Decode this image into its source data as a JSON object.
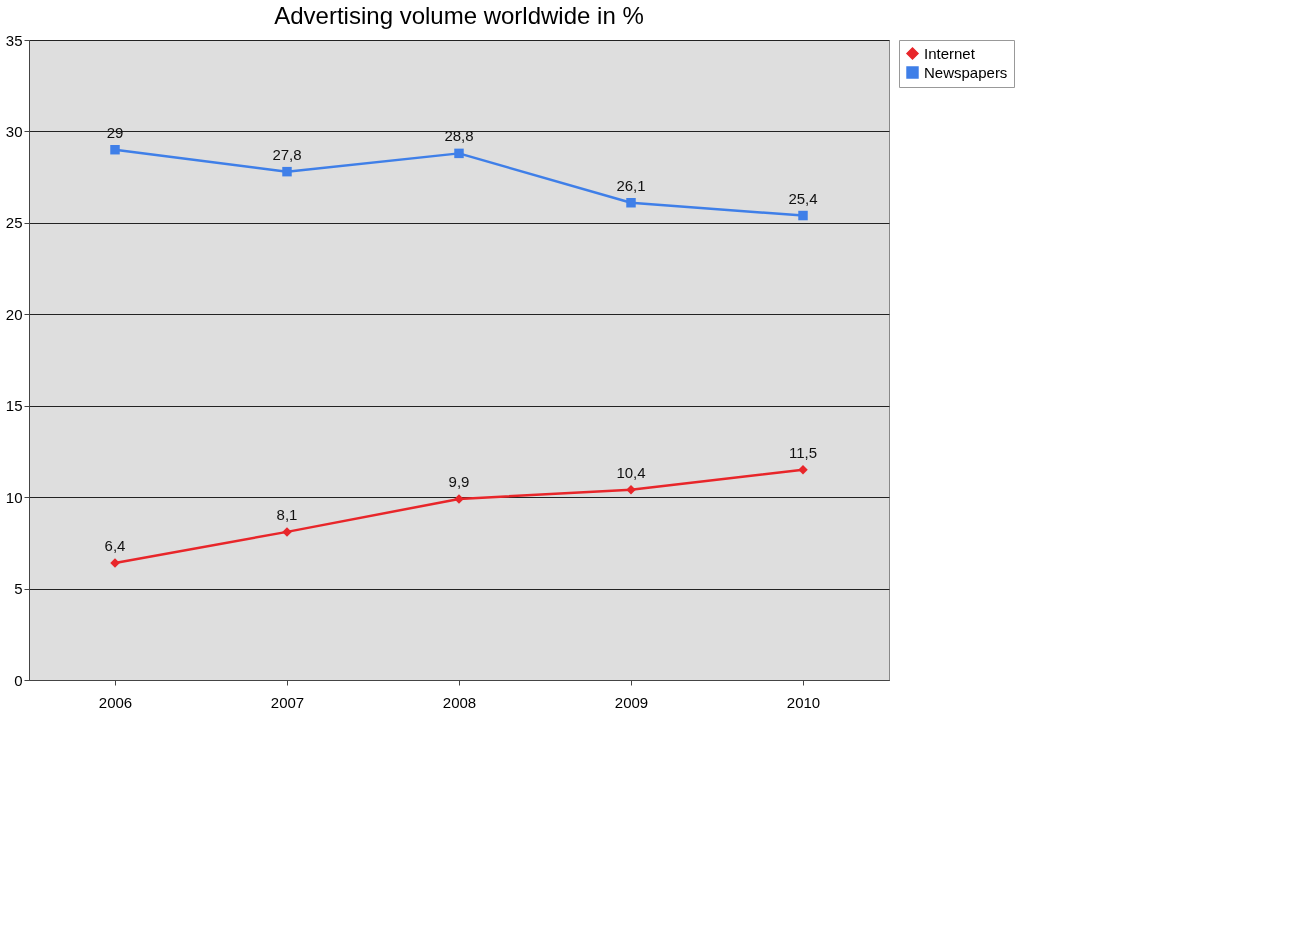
{
  "chart_data": {
    "type": "line",
    "title": "Advertising volume worldwide in %",
    "categories": [
      "2006",
      "2007",
      "2008",
      "2009",
      "2010"
    ],
    "series": [
      {
        "name": "Internet",
        "color": "#e8262a",
        "marker": "diamond",
        "values": [
          6.4,
          8.1,
          9.9,
          10.4,
          11.5
        ],
        "value_labels": [
          "6,4",
          "8,1",
          "9,9",
          "10,4",
          "11,5"
        ]
      },
      {
        "name": "Newspapers",
        "color": "#3f7fe8",
        "marker": "square",
        "values": [
          29,
          27.8,
          28.8,
          26.1,
          25.4
        ],
        "value_labels": [
          "29",
          "27,8",
          "28,8",
          "26,1",
          "25,4"
        ]
      }
    ],
    "ylim": [
      0,
      35
    ],
    "yticks": [
      0,
      5,
      10,
      15,
      20,
      25,
      30,
      35
    ],
    "grid": "y",
    "legend": "right",
    "line_style": "solid"
  }
}
